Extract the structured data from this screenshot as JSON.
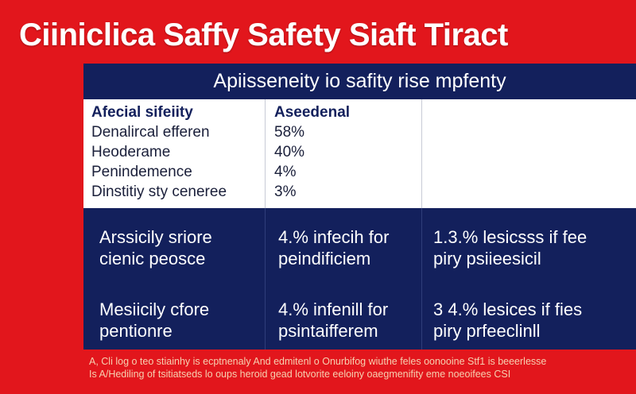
{
  "title": "Ciiniclica Saffy Safety Siaft Tiract",
  "table": {
    "header": "Apiisseneity io safity rise mpfenty",
    "col1_head": "Afecial sifeiity",
    "col2_head": "Aseedenal",
    "rows": [
      {
        "label": "Denalircal efferen",
        "value": "58%"
      },
      {
        "label": "Heoderame",
        "value": "40%"
      },
      {
        "label": "Penindemence",
        "value": "4%"
      },
      {
        "label": "Dinstitiy sty ceneree",
        "value": "3%"
      }
    ],
    "navy_rows": [
      {
        "c1": [
          "Arssicily sriore",
          "cienic peosce"
        ],
        "c2": [
          "4.% infecih for",
          "peindificiem"
        ],
        "c3": [
          "1.3.% lesicsss if fee",
          "piry psiieesicil"
        ]
      },
      {
        "c1": [
          "Mesiicily cfore",
          "pentionre"
        ],
        "c2": [
          "4.% infenill for",
          "psintaifferem"
        ],
        "c3": [
          "3 4.% lesices if fies",
          "piry prfeeclinll"
        ]
      }
    ]
  },
  "footer": [
    "A, Cli log o teo stiainhy is ecptnenaly And edmitenl o Onurbifog wiuthe feles oonooine Stf1 is beeerlesse",
    "Is A/Hediling of tsitiatseds lo oups heroid gead lotvorite eeloiny oaegmenifity eme noeoifees CSI"
  ]
}
